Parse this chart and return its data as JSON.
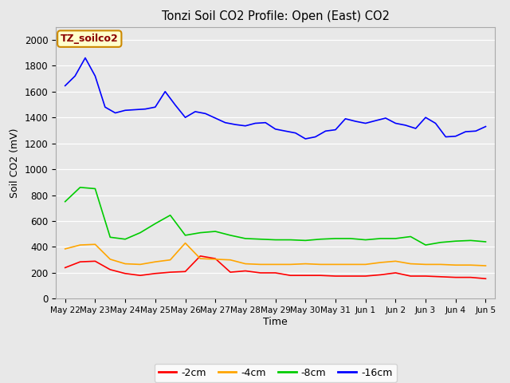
{
  "title": "Tonzi Soil CO2 Profile: Open (East) CO2",
  "xlabel": "Time",
  "ylabel": "Soil CO2 (mV)",
  "watermark": "TZ_soilco2",
  "fig_background": "#e8e8e8",
  "plot_background": "#e8e8e8",
  "ylim": [
    0,
    2100
  ],
  "yticks": [
    0,
    200,
    400,
    600,
    800,
    1000,
    1200,
    1400,
    1600,
    1800,
    2000
  ],
  "x_labels": [
    "May 22",
    "May 23",
    "May 24",
    "May 25",
    "May 26",
    "May 27",
    "May 28",
    "May 29",
    "May 30",
    "May 31",
    "Jun 1",
    "Jun 2",
    "Jun 3",
    "Jun 4",
    "Jun 5"
  ],
  "series": {
    "-2cm": {
      "color": "#ff0000",
      "x": [
        0,
        0.5,
        1.0,
        1.5,
        2.0,
        2.5,
        3.0,
        3.5,
        4.0,
        4.5,
        5.0,
        5.5,
        6.0,
        6.5,
        7.0,
        7.5,
        8.0,
        8.5,
        9.0,
        9.5,
        10.0,
        10.5,
        11.0,
        11.5,
        12.0,
        12.5,
        13.0,
        13.5,
        14.0
      ],
      "values": [
        240,
        285,
        290,
        225,
        195,
        180,
        195,
        205,
        210,
        330,
        310,
        205,
        215,
        200,
        200,
        180,
        180,
        180,
        175,
        175,
        175,
        185,
        200,
        175,
        175,
        170,
        165,
        165,
        155
      ]
    },
    "-4cm": {
      "color": "#ffa500",
      "x": [
        0,
        0.5,
        1.0,
        1.5,
        2.0,
        2.5,
        3.0,
        3.5,
        4.0,
        4.5,
        5.0,
        5.5,
        6.0,
        6.5,
        7.0,
        7.5,
        8.0,
        8.5,
        9.0,
        9.5,
        10.0,
        10.5,
        11.0,
        11.5,
        12.0,
        12.5,
        13.0,
        13.5,
        14.0
      ],
      "values": [
        385,
        415,
        420,
        305,
        270,
        265,
        285,
        300,
        430,
        310,
        305,
        300,
        270,
        265,
        265,
        265,
        270,
        265,
        265,
        265,
        265,
        280,
        290,
        270,
        265,
        265,
        260,
        260,
        255
      ]
    },
    "-8cm": {
      "color": "#00cc00",
      "x": [
        0,
        0.5,
        1.0,
        1.5,
        2.0,
        2.5,
        3.0,
        3.5,
        4.0,
        4.5,
        5.0,
        5.5,
        6.0,
        6.5,
        7.0,
        7.5,
        8.0,
        8.5,
        9.0,
        9.5,
        10.0,
        10.5,
        11.0,
        11.5,
        12.0,
        12.5,
        13.0,
        13.5,
        14.0
      ],
      "values": [
        750,
        860,
        850,
        475,
        460,
        510,
        580,
        645,
        490,
        510,
        520,
        490,
        465,
        460,
        455,
        455,
        450,
        460,
        465,
        465,
        455,
        465,
        465,
        480,
        415,
        435,
        445,
        450,
        440
      ]
    },
    "-16cm": {
      "color": "#0000ff",
      "x": [
        0,
        0.33,
        0.67,
        1.0,
        1.33,
        1.67,
        2.0,
        2.33,
        2.67,
        3.0,
        3.33,
        3.67,
        4.0,
        4.33,
        4.67,
        5.0,
        5.33,
        5.67,
        6.0,
        6.33,
        6.67,
        7.0,
        7.33,
        7.67,
        8.0,
        8.33,
        8.67,
        9.0,
        9.33,
        9.67,
        10.0,
        10.33,
        10.67,
        11.0,
        11.33,
        11.67,
        12.0,
        12.33,
        12.67,
        13.0,
        13.33,
        13.67,
        14.0
      ],
      "values": [
        1645,
        1720,
        1860,
        1720,
        1480,
        1435,
        1455,
        1460,
        1465,
        1480,
        1600,
        1495,
        1400,
        1445,
        1430,
        1395,
        1360,
        1345,
        1335,
        1355,
        1360,
        1310,
        1295,
        1280,
        1235,
        1250,
        1295,
        1305,
        1390,
        1370,
        1355,
        1375,
        1395,
        1355,
        1340,
        1315,
        1400,
        1355,
        1250,
        1255,
        1290,
        1295,
        1330
      ]
    }
  }
}
